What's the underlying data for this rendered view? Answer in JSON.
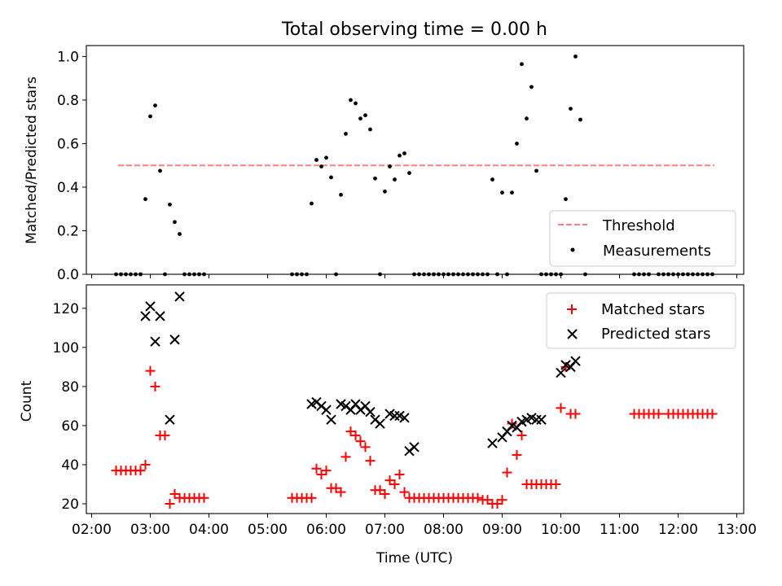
{
  "figure": {
    "title": "Total observing time = 0.00 h"
  },
  "chart_data": [
    {
      "type": "scatter",
      "panel": "top",
      "ylabel": "Matched/Predicted stars",
      "xlabel": "",
      "xlim": [
        "02:00",
        "13:00"
      ],
      "ylim": [
        0,
        1.05
      ],
      "yticks": [
        "0.0",
        "0.2",
        "0.4",
        "0.6",
        "0.8",
        "1.0"
      ],
      "grid": false,
      "legend_position": "lower-right",
      "threshold": {
        "name": "Threshold",
        "value": 0.5,
        "x_range": [
          "02:27",
          "12:37"
        ],
        "color": "#ff7f7f",
        "style": "dashed"
      },
      "series": [
        {
          "name": "Measurements",
          "color": "#000000",
          "marker": "dot",
          "points": [
            [
              "02:25",
              0
            ],
            [
              "02:30",
              0
            ],
            [
              "02:35",
              0
            ],
            [
              "02:40",
              0
            ],
            [
              "02:45",
              0
            ],
            [
              "02:50",
              0
            ],
            [
              "02:55",
              0.345
            ],
            [
              "03:00",
              0.725
            ],
            [
              "03:05",
              0.775
            ],
            [
              "03:10",
              0.475
            ],
            [
              "03:15",
              0
            ],
            [
              "03:20",
              0.32
            ],
            [
              "03:25",
              0.24
            ],
            [
              "03:30",
              0.185
            ],
            [
              "03:35",
              0
            ],
            [
              "03:40",
              0
            ],
            [
              "03:45",
              0
            ],
            [
              "03:50",
              0
            ],
            [
              "03:55",
              0
            ],
            [
              "05:25",
              0
            ],
            [
              "05:30",
              0
            ],
            [
              "05:35",
              0
            ],
            [
              "05:40",
              0
            ],
            [
              "05:45",
              0.325
            ],
            [
              "05:50",
              0.525
            ],
            [
              "05:55",
              0.495
            ],
            [
              "06:00",
              0.535
            ],
            [
              "06:05",
              0.445
            ],
            [
              "06:10",
              0
            ],
            [
              "06:15",
              0.365
            ],
            [
              "06:20",
              0.645
            ],
            [
              "06:25",
              0.8
            ],
            [
              "06:30",
              0.785
            ],
            [
              "06:35",
              0.715
            ],
            [
              "06:40",
              0.73
            ],
            [
              "06:45",
              0.665
            ],
            [
              "06:50",
              0.44
            ],
            [
              "06:55",
              0
            ],
            [
              "07:00",
              0.38
            ],
            [
              "07:05",
              0.495
            ],
            [
              "07:10",
              0.435
            ],
            [
              "07:15",
              0.545
            ],
            [
              "07:20",
              0.555
            ],
            [
              "07:25",
              0.465
            ],
            [
              "07:30",
              0
            ],
            [
              "07:35",
              0
            ],
            [
              "07:40",
              0
            ],
            [
              "07:45",
              0
            ],
            [
              "07:50",
              0
            ],
            [
              "07:55",
              0
            ],
            [
              "08:00",
              0
            ],
            [
              "08:05",
              0
            ],
            [
              "08:10",
              0
            ],
            [
              "08:15",
              0
            ],
            [
              "08:20",
              0
            ],
            [
              "08:25",
              0
            ],
            [
              "08:30",
              0
            ],
            [
              "08:35",
              0
            ],
            [
              "08:40",
              0
            ],
            [
              "08:45",
              0
            ],
            [
              "08:50",
              0.435
            ],
            [
              "08:55",
              0
            ],
            [
              "09:00",
              0.375
            ],
            [
              "09:05",
              0
            ],
            [
              "09:10",
              0.375
            ],
            [
              "09:15",
              0.6
            ],
            [
              "09:20",
              0.965
            ],
            [
              "09:25",
              0.715
            ],
            [
              "09:30",
              0.86
            ],
            [
              "09:35",
              0.475
            ],
            [
              "09:40",
              0
            ],
            [
              "09:45",
              0
            ],
            [
              "09:50",
              0
            ],
            [
              "09:55",
              0
            ],
            [
              "10:00",
              0
            ],
            [
              "10:05",
              0.345
            ],
            [
              "10:10",
              0.76
            ],
            [
              "10:15",
              1.0
            ],
            [
              "10:20",
              0.71
            ],
            [
              "10:25",
              0
            ],
            [
              "11:15",
              0
            ],
            [
              "11:20",
              0
            ],
            [
              "11:25",
              0
            ],
            [
              "11:30",
              0
            ],
            [
              "11:40",
              0
            ],
            [
              "11:45",
              0
            ],
            [
              "11:50",
              0
            ],
            [
              "11:55",
              0
            ],
            [
              "12:00",
              0
            ],
            [
              "12:05",
              0
            ],
            [
              "12:10",
              0
            ],
            [
              "12:15",
              0
            ],
            [
              "12:20",
              0
            ],
            [
              "12:25",
              0
            ],
            [
              "12:30",
              0
            ],
            [
              "12:35",
              0
            ]
          ]
        }
      ]
    },
    {
      "type": "scatter",
      "panel": "bottom",
      "ylabel": "Count",
      "xlabel": "Time (UTC)",
      "xlim": [
        "02:00",
        "13:00"
      ],
      "ylim": [
        15,
        132
      ],
      "yticks": [
        "20",
        "40",
        "60",
        "80",
        "100",
        "120"
      ],
      "xticks": [
        "02:00",
        "03:00",
        "04:00",
        "05:00",
        "06:00",
        "07:00",
        "08:00",
        "09:00",
        "10:00",
        "11:00",
        "12:00",
        "13:00"
      ],
      "grid": false,
      "legend_position": "upper-right",
      "series": [
        {
          "name": "Matched stars",
          "color": "#ff0000",
          "marker": "plus",
          "points": [
            [
              "02:25",
              37
            ],
            [
              "02:30",
              37
            ],
            [
              "02:35",
              37
            ],
            [
              "02:40",
              37
            ],
            [
              "02:45",
              37
            ],
            [
              "02:50",
              37
            ],
            [
              "02:55",
              40
            ],
            [
              "03:00",
              88
            ],
            [
              "03:05",
              80
            ],
            [
              "03:10",
              55
            ],
            [
              "03:15",
              55
            ],
            [
              "03:20",
              20
            ],
            [
              "03:25",
              25
            ],
            [
              "03:30",
              23
            ],
            [
              "03:35",
              23
            ],
            [
              "03:40",
              23
            ],
            [
              "03:45",
              23
            ],
            [
              "03:50",
              23
            ],
            [
              "03:55",
              23
            ],
            [
              "05:25",
              23
            ],
            [
              "05:30",
              23
            ],
            [
              "05:35",
              23
            ],
            [
              "05:40",
              23
            ],
            [
              "05:45",
              23
            ],
            [
              "05:50",
              38
            ],
            [
              "05:55",
              35
            ],
            [
              "06:00",
              37
            ],
            [
              "06:05",
              28
            ],
            [
              "06:10",
              28
            ],
            [
              "06:15",
              26
            ],
            [
              "06:20",
              44
            ],
            [
              "06:25",
              57
            ],
            [
              "06:30",
              55
            ],
            [
              "06:35",
              52
            ],
            [
              "06:40",
              49
            ],
            [
              "06:45",
              42
            ],
            [
              "06:50",
              27
            ],
            [
              "06:55",
              27
            ],
            [
              "07:00",
              25
            ],
            [
              "07:05",
              32
            ],
            [
              "07:10",
              30
            ],
            [
              "07:15",
              35
            ],
            [
              "07:20",
              26
            ],
            [
              "07:25",
              23
            ],
            [
              "07:30",
              23
            ],
            [
              "07:35",
              23
            ],
            [
              "07:40",
              23
            ],
            [
              "07:45",
              23
            ],
            [
              "07:50",
              23
            ],
            [
              "07:55",
              23
            ],
            [
              "08:00",
              23
            ],
            [
              "08:05",
              23
            ],
            [
              "08:10",
              23
            ],
            [
              "08:15",
              23
            ],
            [
              "08:20",
              23
            ],
            [
              "08:25",
              23
            ],
            [
              "08:30",
              23
            ],
            [
              "08:35",
              23
            ],
            [
              "08:40",
              22
            ],
            [
              "08:45",
              22
            ],
            [
              "08:50",
              20
            ],
            [
              "08:55",
              20
            ],
            [
              "09:00",
              22
            ],
            [
              "09:05",
              36
            ],
            [
              "09:10",
              61
            ],
            [
              "09:15",
              45
            ],
            [
              "09:20",
              55
            ],
            [
              "09:25",
              30
            ],
            [
              "09:30",
              30
            ],
            [
              "09:35",
              30
            ],
            [
              "09:40",
              30
            ],
            [
              "09:45",
              30
            ],
            [
              "09:50",
              30
            ],
            [
              "09:55",
              30
            ],
            [
              "10:00",
              69
            ],
            [
              "10:05",
              90
            ],
            [
              "10:10",
              66
            ],
            [
              "10:15",
              66
            ],
            [
              "11:15",
              66
            ],
            [
              "11:20",
              66
            ],
            [
              "11:25",
              66
            ],
            [
              "11:30",
              66
            ],
            [
              "11:35",
              66
            ],
            [
              "11:40",
              66
            ],
            [
              "11:50",
              66
            ],
            [
              "11:55",
              66
            ],
            [
              "12:00",
              66
            ],
            [
              "12:05",
              66
            ],
            [
              "12:10",
              66
            ],
            [
              "12:15",
              66
            ],
            [
              "12:20",
              66
            ],
            [
              "12:25",
              66
            ],
            [
              "12:30",
              66
            ],
            [
              "12:35",
              66
            ]
          ]
        },
        {
          "name": "Predicted stars",
          "color": "#000000",
          "marker": "x",
          "points": [
            [
              "02:55",
              116
            ],
            [
              "03:00",
              121
            ],
            [
              "03:05",
              103
            ],
            [
              "03:10",
              116
            ],
            [
              "03:20",
              63
            ],
            [
              "03:25",
              104
            ],
            [
              "03:30",
              126
            ],
            [
              "05:45",
              71
            ],
            [
              "05:50",
              72
            ],
            [
              "05:55",
              70
            ],
            [
              "06:00",
              68
            ],
            [
              "06:05",
              63
            ],
            [
              "06:15",
              71
            ],
            [
              "06:20",
              70
            ],
            [
              "06:25",
              68
            ],
            [
              "06:30",
              71
            ],
            [
              "06:35",
              68
            ],
            [
              "06:40",
              70
            ],
            [
              "06:45",
              67
            ],
            [
              "06:50",
              63
            ],
            [
              "06:55",
              61
            ],
            [
              "07:05",
              66
            ],
            [
              "07:10",
              65
            ],
            [
              "07:15",
              65
            ],
            [
              "07:20",
              64
            ],
            [
              "07:25",
              47
            ],
            [
              "07:30",
              49
            ],
            [
              "08:50",
              51
            ],
            [
              "09:00",
              54
            ],
            [
              "09:05",
              57
            ],
            [
              "09:10",
              60
            ],
            [
              "09:15",
              59
            ],
            [
              "09:20",
              62
            ],
            [
              "09:25",
              63
            ],
            [
              "09:30",
              64
            ],
            [
              "09:35",
              63
            ],
            [
              "09:40",
              63
            ],
            [
              "10:00",
              87
            ],
            [
              "10:05",
              91
            ],
            [
              "10:10",
              90
            ],
            [
              "10:15",
              93
            ]
          ]
        }
      ]
    }
  ]
}
